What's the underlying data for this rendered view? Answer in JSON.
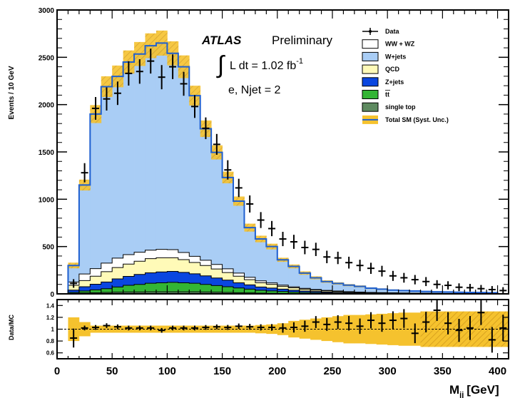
{
  "chart_data": {
    "type": "histogram",
    "bin_edges_start": 0,
    "bin_width": 10,
    "x_range": [
      0,
      410
    ],
    "ylabel": "Events / 10 GeV",
    "xlabel": "M_jj [GeV]",
    "xlabel_main": "M",
    "xlabel_sub": "jj",
    "xlabel_unit": "[GeV]",
    "y_range": [
      0,
      3000
    ],
    "y_ticks": [
      "0",
      "500",
      "1000",
      "1500",
      "2000",
      "2500",
      "3000"
    ],
    "x_ticks": [
      "0",
      "50",
      "100",
      "150",
      "200",
      "250",
      "300",
      "350",
      "400"
    ],
    "stack_order_bottom_to_top": [
      "single top",
      "tt",
      "Z+jets",
      "QCD",
      "WW + WZ",
      "W+jets"
    ],
    "components": {
      "single_top": [
        0,
        5,
        10,
        12,
        15,
        18,
        20,
        20,
        22,
        22,
        22,
        22,
        22,
        20,
        18,
        15,
        12,
        10,
        8,
        6,
        5,
        4,
        3,
        3,
        2,
        2,
        2,
        1,
        1,
        1,
        1,
        1,
        1,
        1,
        1,
        1,
        1,
        1,
        1,
        1,
        0
      ],
      "ttbar": [
        0,
        10,
        20,
        30,
        40,
        55,
        70,
        80,
        90,
        95,
        100,
        95,
        90,
        80,
        70,
        60,
        50,
        40,
        30,
        25,
        20,
        15,
        12,
        10,
        8,
        6,
        5,
        4,
        3,
        3,
        2,
        2,
        2,
        1,
        1,
        1,
        1,
        1,
        1,
        1,
        0
      ],
      "zjets": [
        0,
        25,
        45,
        60,
        70,
        85,
        95,
        105,
        110,
        115,
        115,
        110,
        100,
        90,
        80,
        70,
        55,
        45,
        35,
        30,
        25,
        20,
        15,
        12,
        10,
        8,
        6,
        5,
        4,
        3,
        3,
        2,
        2,
        2,
        1,
        1,
        1,
        1,
        1,
        1,
        0
      ],
      "qcd": [
        0,
        50,
        65,
        85,
        110,
        120,
        130,
        140,
        150,
        150,
        145,
        135,
        120,
        110,
        95,
        80,
        70,
        55,
        45,
        40,
        30,
        25,
        20,
        15,
        12,
        10,
        8,
        6,
        5,
        4,
        3,
        3,
        2,
        2,
        2,
        1,
        1,
        1,
        1,
        1,
        0
      ],
      "diboson": [
        0,
        35,
        70,
        80,
        90,
        100,
        100,
        95,
        90,
        88,
        85,
        75,
        65,
        55,
        48,
        40,
        33,
        25,
        20,
        15,
        12,
        10,
        8,
        6,
        5,
        4,
        3,
        3,
        2,
        2,
        2,
        1,
        1,
        1,
        1,
        1,
        1,
        1,
        1,
        1,
        0
      ],
      "wjets": [
        0,
        175,
        940,
        1633,
        1865,
        1920,
        2035,
        2095,
        2160,
        2180,
        2075,
        1963,
        1698,
        1390,
        1184,
        965,
        760,
        525,
        442,
        384,
        268,
        216,
        162,
        127,
        95,
        82,
        70,
        61,
        45,
        37,
        29,
        27,
        22,
        18,
        16,
        15,
        13,
        11,
        10,
        8,
        0
      ]
    },
    "total_sm": [
      0,
      300,
      1150,
      1900,
      2190,
      2298,
      2450,
      2535,
      2622,
      2650,
      2542,
      2400,
      2095,
      1745,
      1495,
      1230,
      980,
      700,
      580,
      500,
      360,
      290,
      220,
      170,
      130,
      110,
      92,
      79,
      60,
      50,
      40,
      35,
      30,
      25,
      22,
      20,
      17,
      15,
      14,
      12,
      0
    ],
    "syst_band_fraction": [
      0.1,
      0.1,
      0.05,
      0.05,
      0.05,
      0.05,
      0.05,
      0.05,
      0.05,
      0.05,
      0.05,
      0.05,
      0.05,
      0.05,
      0.05,
      0.05,
      0.05,
      0.06,
      0.06,
      0.06,
      0.06,
      0.07,
      0.08,
      0.09,
      0.1,
      0.11,
      0.12,
      0.13,
      0.14,
      0.15,
      0.16,
      0.2,
      0.2,
      0.22,
      0.22,
      0.22,
      0.22,
      0.22,
      0.22,
      0.22,
      0.22
    ],
    "data": {
      "x": [
        15,
        25,
        35,
        45,
        55,
        65,
        75,
        85,
        95,
        105,
        115,
        125,
        135,
        145,
        155,
        165,
        175,
        185,
        195,
        205,
        215,
        225,
        235,
        245,
        255,
        265,
        275,
        285,
        295,
        305,
        315,
        325,
        335,
        345,
        355,
        365,
        375,
        385,
        395,
        405
      ],
      "y": [
        110,
        1280,
        1960,
        2060,
        2120,
        2330,
        2350,
        2460,
        2290,
        2400,
        2220,
        1980,
        1750,
        1580,
        1310,
        1120,
        950,
        780,
        690,
        580,
        550,
        490,
        470,
        390,
        380,
        330,
        300,
        270,
        240,
        190,
        170,
        150,
        130,
        100,
        90,
        70,
        65,
        55,
        45,
        35
      ]
    },
    "ratio": {
      "ylabel": "Data/MC",
      "y_range": [
        0.5,
        1.5
      ],
      "y_ticks": [
        "0.6",
        "0.8",
        "1",
        "1.2",
        "1.4"
      ],
      "x": [
        15,
        25,
        35,
        45,
        55,
        65,
        75,
        85,
        95,
        105,
        115,
        125,
        135,
        145,
        155,
        165,
        175,
        185,
        195,
        205,
        215,
        225,
        235,
        245,
        255,
        265,
        275,
        285,
        295,
        305,
        315,
        325,
        335,
        345,
        355,
        365,
        375,
        385,
        395,
        405
      ],
      "y": [
        0.85,
        1.02,
        1.03,
        1.06,
        1.04,
        1.02,
        1.02,
        1.02,
        0.98,
        1.02,
        1.02,
        1.02,
        1.03,
        1.04,
        1.03,
        1.05,
        1.04,
        1.03,
        1.03,
        1.02,
        1.03,
        1.05,
        1.12,
        1.08,
        1.12,
        1.1,
        1.05,
        1.15,
        1.1,
        1.15,
        1.18,
        0.93,
        1.12,
        1.32,
        1.1,
        0.98,
        1.02,
        1.28,
        0.82,
        1.02
      ],
      "band": [
        0.2,
        0.12,
        0.06,
        0.06,
        0.06,
        0.06,
        0.06,
        0.06,
        0.06,
        0.06,
        0.06,
        0.06,
        0.06,
        0.06,
        0.06,
        0.06,
        0.06,
        0.07,
        0.08,
        0.1,
        0.14,
        0.16,
        0.18,
        0.2,
        0.22,
        0.24,
        0.24,
        0.25,
        0.26,
        0.27,
        0.28,
        0.28,
        0.3,
        0.3,
        0.3,
        0.3,
        0.3,
        0.3,
        0.3,
        0.3
      ]
    },
    "legend_position": "top-right"
  },
  "labels": {
    "atlas": "ATLAS",
    "preliminary": "Preliminary",
    "lumi_prefix": "L dt = 1.02 fb",
    "lumi_exp": "-1",
    "integral": "∫",
    "channel": "e, Njet = 2"
  },
  "legend": [
    {
      "key": "data",
      "label": "Data",
      "style": "marker"
    },
    {
      "key": "diboson",
      "label": "WW + WZ",
      "style": "box",
      "color": "#ffffff"
    },
    {
      "key": "wjets",
      "label": "W+jets",
      "style": "box",
      "color": "#a9cdf5"
    },
    {
      "key": "qcd",
      "label": "QCD",
      "style": "box",
      "color": "#fffab8"
    },
    {
      "key": "zjets",
      "label": "Z+jets",
      "style": "box",
      "color": "#0a46e0"
    },
    {
      "key": "ttbar",
      "label": "tt",
      "style": "box",
      "color": "#33b534"
    },
    {
      "key": "single_top",
      "label": "single top",
      "style": "box",
      "color": "#5e8a60"
    },
    {
      "key": "total",
      "label": "Total SM (Syst. Unc.)",
      "style": "band",
      "color": "#1e5fd0",
      "band_color": "#f5c22e"
    }
  ],
  "colors": {
    "wjets": "#a9cdf5",
    "diboson": "#ffffff",
    "qcd": "#fffab8",
    "zjets": "#0a46e0",
    "ttbar": "#33b534",
    "single_top": "#5e8a60",
    "total_line": "#1e5fd0",
    "band": "#f5c22e",
    "band_hatch": "#d9a320"
  }
}
